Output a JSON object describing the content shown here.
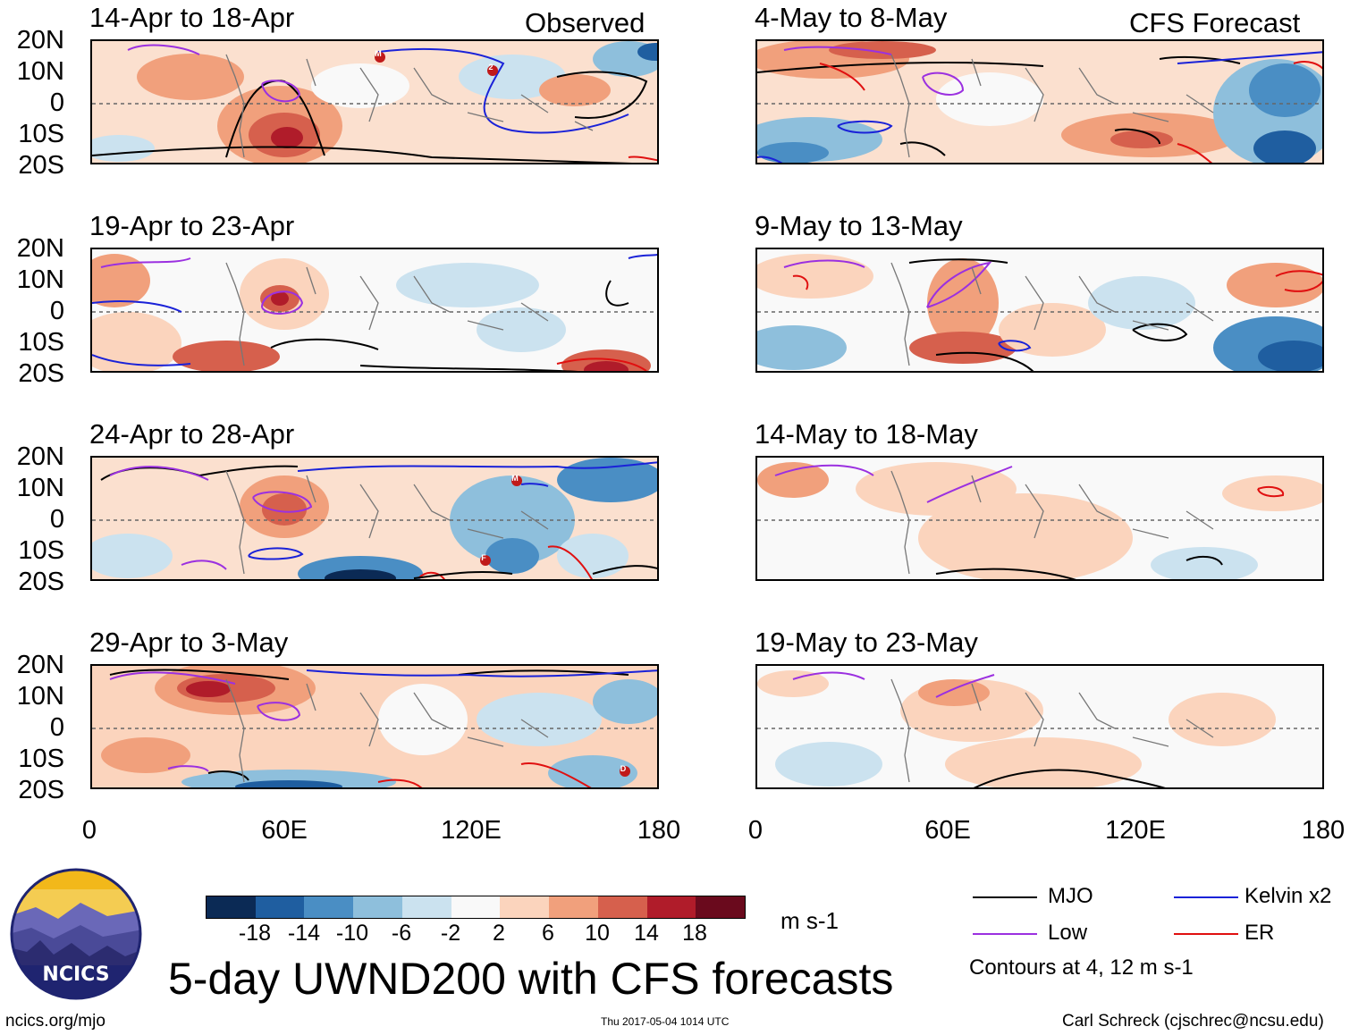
{
  "headers": {
    "observed": "Observed",
    "forecast": "CFS Forecast"
  },
  "lat_labels": [
    "20N",
    "10N",
    "0",
    "10S",
    "20S"
  ],
  "lon_labels": [
    "0",
    "60E",
    "120E",
    "180"
  ],
  "panels": {
    "left": [
      {
        "title": "14-Apr to 18-Apr"
      },
      {
        "title": "19-Apr to 23-Apr"
      },
      {
        "title": "24-Apr to 28-Apr"
      },
      {
        "title": "29-Apr to 3-May"
      }
    ],
    "right": [
      {
        "title": "4-May to 8-May"
      },
      {
        "title": "9-May to 13-May"
      },
      {
        "title": "14-May to 18-May"
      },
      {
        "title": "19-May to 23-May"
      }
    ]
  },
  "storm_markers": [
    "M",
    "2",
    "M",
    "F",
    "D"
  ],
  "colorbar": {
    "labels": [
      "-18",
      "-14",
      "-10",
      "-6",
      "-2",
      "2",
      "6",
      "10",
      "14",
      "18"
    ],
    "colors": [
      "#0b2a55",
      "#1f5ea0",
      "#4a8ec4",
      "#8ebfdc",
      "#cbe2ef",
      "#f9f9f9",
      "#fbd4bd",
      "#f1a07c",
      "#d6604d",
      "#b01c2a",
      "#6a0a1d"
    ],
    "units": "m s-1"
  },
  "legend": {
    "items": [
      {
        "label": "MJO",
        "color": "#000000"
      },
      {
        "label": "Kelvin x2",
        "color": "#1a22d8"
      },
      {
        "label": "Low",
        "color": "#9b30e0"
      },
      {
        "label": "ER",
        "color": "#e01010"
      }
    ],
    "note": "Contours at 4, 12 m s-1"
  },
  "main_title": "5-day UWND200 with CFS forecasts",
  "logo_text": "NCICS",
  "footer": {
    "url": "ncics.org/mjo",
    "timestamp": "Thu 2017-05-04 1014 UTC",
    "author": "Carl Schreck (cjschrec@ncsu.edu)"
  }
}
